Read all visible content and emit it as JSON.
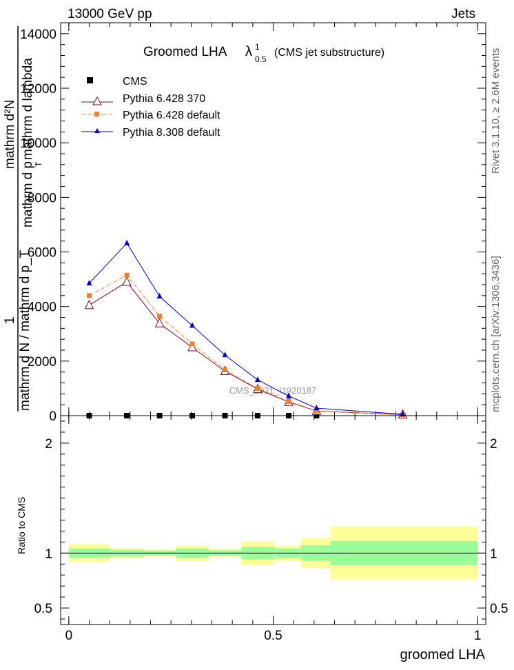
{
  "header": {
    "energy_label": "13000 GeV pp",
    "category_label": "Jets"
  },
  "side_labels": {
    "rivet": "Rivet 3.1.10, ≥ 2.6M events",
    "source": "mcplots.cern.ch [arXiv:1306.3436]"
  },
  "chart_data": [
    {
      "type": "line",
      "title": "Groomed LHA",
      "title_symbol": "λ",
      "title_sup": "1",
      "title_sub": "0.5",
      "title_suffix": "(CMS jet substructure)",
      "ylabel_numerator_lines": [
        "mathrm d²N",
        "mathrm d p",
        "T",
        "mathrm d lambda"
      ],
      "ylabel_numerator_text": "mathrm d²N / mathrm d p_T mathrm d lambda",
      "ylabel_one": "1",
      "ylabel_denominator": "mathrm d N / mathrm d p_T",
      "watermark": "CMS_2021_I1920187",
      "ylim": [
        0,
        14400
      ],
      "xlim": [
        -0.02,
        1.02
      ],
      "yticks": [
        0,
        2000,
        4000,
        6000,
        8000,
        10000,
        12000,
        14000
      ],
      "ytick_labels": [
        "0",
        "2000",
        "4000",
        "6000",
        "8000",
        "10000",
        "12000",
        "14000"
      ],
      "legend_position": "top-left",
      "legend": [
        "CMS",
        "Pythia 6.428 370",
        "Pythia 6.428 default",
        "Pythia 8.308 default"
      ],
      "x": [
        0.05,
        0.142,
        0.222,
        0.302,
        0.382,
        0.462,
        0.538,
        0.606,
        0.817
      ],
      "series": [
        {
          "name": "CMS",
          "color": "#000000",
          "marker": "square",
          "values": [
            0,
            0,
            0,
            0,
            0,
            0,
            0,
            0,
            0
          ]
        },
        {
          "name": "Pythia 6.428 370",
          "color": "#7a0a1e",
          "marker": "open-triangle",
          "values": [
            4050,
            4900,
            3380,
            2500,
            1630,
            970,
            500,
            170,
            35
          ]
        },
        {
          "name": "Pythia 6.428 default",
          "color": "#f08030",
          "marker": "square",
          "values": [
            4400,
            5150,
            3650,
            2630,
            1680,
            1000,
            520,
            175,
            36
          ]
        },
        {
          "name": "Pythia 8.308 default",
          "color": "#0000c8",
          "marker": "triangle",
          "values": [
            4850,
            6320,
            4370,
            3300,
            2220,
            1310,
            720,
            275,
            50
          ]
        }
      ]
    },
    {
      "type": "area",
      "ylabel": "Ratio to CMS",
      "xlabel": "groomed LHA",
      "ylim": [
        0.35,
        2.25
      ],
      "xlim": [
        -0.02,
        1.02
      ],
      "yticks": [
        0.5,
        1,
        2
      ],
      "ytick_labels": [
        "0.5",
        "1",
        "2"
      ],
      "xticks": [
        0,
        0.5,
        1
      ],
      "xtick_labels": [
        "0",
        "0.5",
        "1"
      ],
      "reference_line": 1,
      "bin_edges": [
        0.0,
        0.1,
        0.183,
        0.262,
        0.342,
        0.422,
        0.502,
        0.568,
        0.64,
        1.0
      ],
      "band_inner": {
        "color": "#99ff99",
        "low": [
          0.958,
          0.97,
          0.978,
          0.958,
          0.975,
          0.943,
          0.958,
          0.93,
          0.89
        ],
        "high": [
          1.042,
          1.03,
          1.022,
          1.042,
          1.025,
          1.057,
          1.042,
          1.07,
          1.11
        ]
      },
      "band_outer": {
        "color": "#ffff99",
        "low": [
          0.92,
          0.955,
          0.965,
          0.93,
          0.962,
          0.895,
          0.93,
          0.862,
          0.76
        ],
        "high": [
          1.08,
          1.045,
          1.035,
          1.07,
          1.038,
          1.105,
          1.07,
          1.138,
          1.24
        ]
      }
    }
  ]
}
